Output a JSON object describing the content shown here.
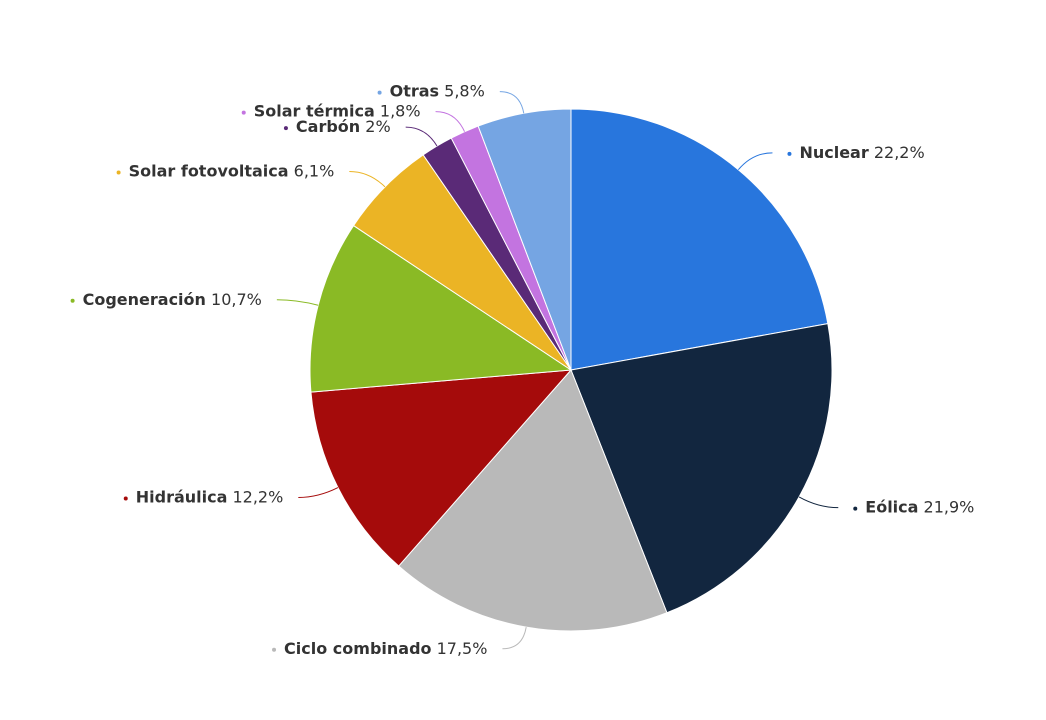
{
  "chart_data": {
    "type": "pie",
    "categories": [
      "Nuclear",
      "Eólica",
      "Ciclo combinado",
      "Hidráulica",
      "Cogeneración",
      "Solar fotovoltaica",
      "Carbón",
      "Solar térmica",
      "Otras"
    ],
    "values": [
      22.2,
      21.9,
      17.5,
      12.2,
      10.7,
      6.1,
      2,
      1.8,
      5.8
    ],
    "value_labels": [
      "22,2%",
      "21,9%",
      "17,5%",
      "12,2%",
      "10,7%",
      "6,1%",
      "2%",
      "1,8%",
      "5,8%"
    ],
    "colors": [
      "#2876dd",
      "#12263f",
      "#b9b9b9",
      "#a50b0b",
      "#8aba25",
      "#ebb425",
      "#5a2a77",
      "#c374e0",
      "#75a5e3"
    ]
  }
}
